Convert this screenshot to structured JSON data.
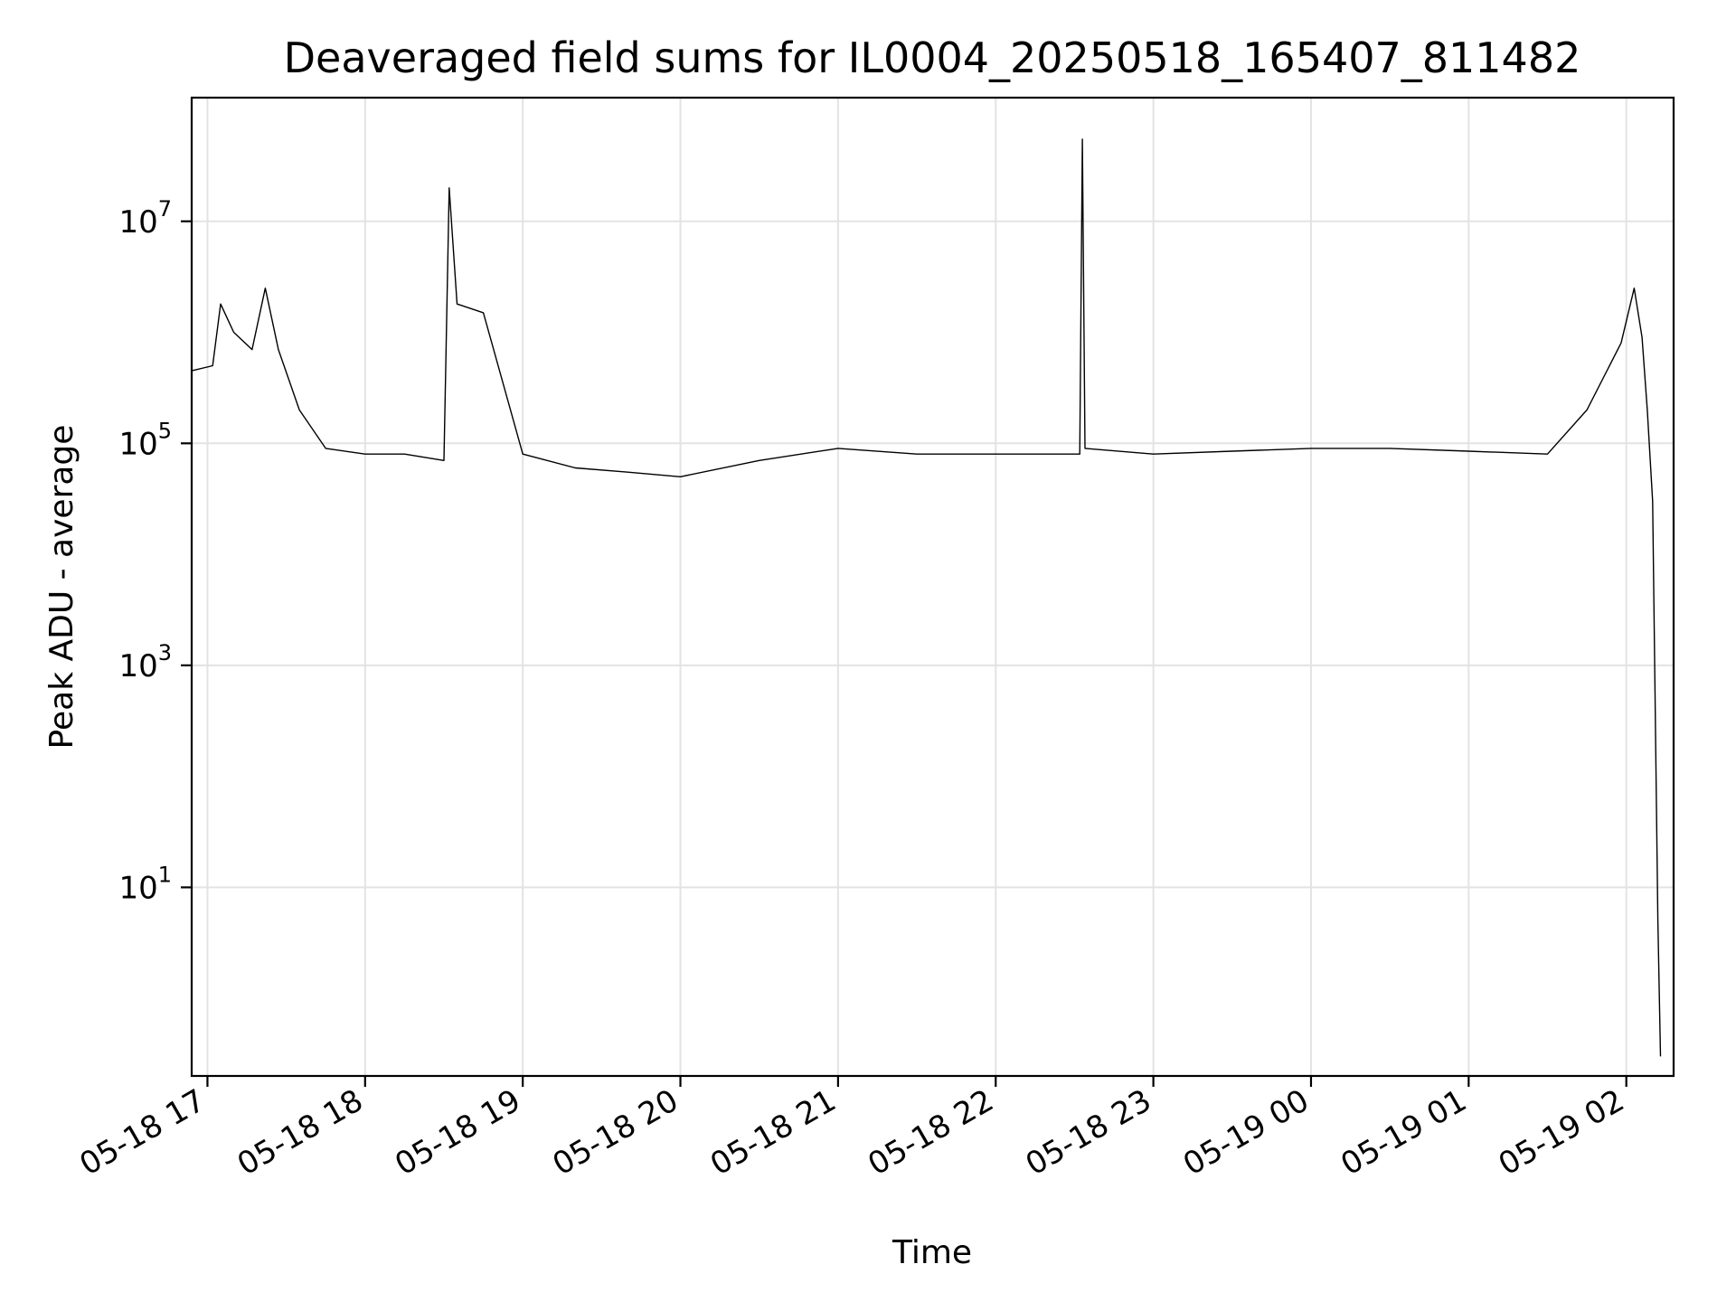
{
  "chart_data": {
    "type": "line",
    "title": "Deaveraged field sums for IL0004_20250518_165407_811482",
    "xlabel": "Time",
    "ylabel": "Peak ADU - average",
    "yscale": "log",
    "grid": true,
    "legend": "none",
    "line_color": "#000000",
    "xlim": [
      "2025-05-18 16:54",
      "2025-05-19 02:18"
    ],
    "ylim": [
      0.2,
      130000000.0
    ],
    "x_ticks": [
      {
        "value": "2025-05-18 17:00",
        "label": "05-18 17"
      },
      {
        "value": "2025-05-18 18:00",
        "label": "05-18 18"
      },
      {
        "value": "2025-05-18 19:00",
        "label": "05-18 19"
      },
      {
        "value": "2025-05-18 20:00",
        "label": "05-18 20"
      },
      {
        "value": "2025-05-18 21:00",
        "label": "05-18 21"
      },
      {
        "value": "2025-05-18 22:00",
        "label": "05-18 22"
      },
      {
        "value": "2025-05-18 23:00",
        "label": "05-18 23"
      },
      {
        "value": "2025-05-19 00:00",
        "label": "05-19 00"
      },
      {
        "value": "2025-05-19 01:00",
        "label": "05-19 01"
      },
      {
        "value": "2025-05-19 02:00",
        "label": "05-19 02"
      }
    ],
    "y_ticks": [
      {
        "value": 10,
        "base": "10",
        "exp": "1"
      },
      {
        "value": 1000,
        "base": "10",
        "exp": "3"
      },
      {
        "value": 100000,
        "base": "10",
        "exp": "5"
      },
      {
        "value": 10000000,
        "base": "10",
        "exp": "7"
      }
    ],
    "series": [
      {
        "x": [
          "2025-05-18 16:54",
          "2025-05-18 17:02",
          "2025-05-18 17:05",
          "2025-05-18 17:10",
          "2025-05-18 17:17",
          "2025-05-18 17:22",
          "2025-05-18 17:27",
          "2025-05-18 17:35",
          "2025-05-18 17:45",
          "2025-05-18 18:00",
          "2025-05-18 18:15",
          "2025-05-18 18:30",
          "2025-05-18 18:32",
          "2025-05-18 18:35",
          "2025-05-18 18:45",
          "2025-05-18 19:00",
          "2025-05-18 19:20",
          "2025-05-18 19:40",
          "2025-05-18 20:00",
          "2025-05-18 20:30",
          "2025-05-18 21:00",
          "2025-05-18 21:30",
          "2025-05-18 22:00",
          "2025-05-18 22:32",
          "2025-05-18 22:33",
          "2025-05-18 22:34",
          "2025-05-18 23:00",
          "2025-05-18 23:30",
          "2025-05-19 00:00",
          "2025-05-19 00:30",
          "2025-05-19 01:00",
          "2025-05-19 01:30",
          "2025-05-19 01:45",
          "2025-05-19 01:58",
          "2025-05-19 02:03",
          "2025-05-19 02:06",
          "2025-05-19 02:08",
          "2025-05-19 02:10",
          "2025-05-19 02:12",
          "2025-05-19 02:13"
        ],
        "y": [
          450000,
          500000,
          1800000,
          1000000,
          700000,
          2500000,
          700000,
          200000,
          90000,
          80000,
          80000,
          70000,
          20000000,
          1800000,
          1500000,
          80000,
          60000,
          55000,
          50000,
          70000,
          90000,
          80000,
          80000,
          80000,
          55000000,
          90000,
          80000,
          85000,
          90000,
          90000,
          85000,
          80000,
          200000,
          800000,
          2500000,
          900000,
          200000,
          30000,
          5,
          0.3
        ]
      }
    ]
  }
}
